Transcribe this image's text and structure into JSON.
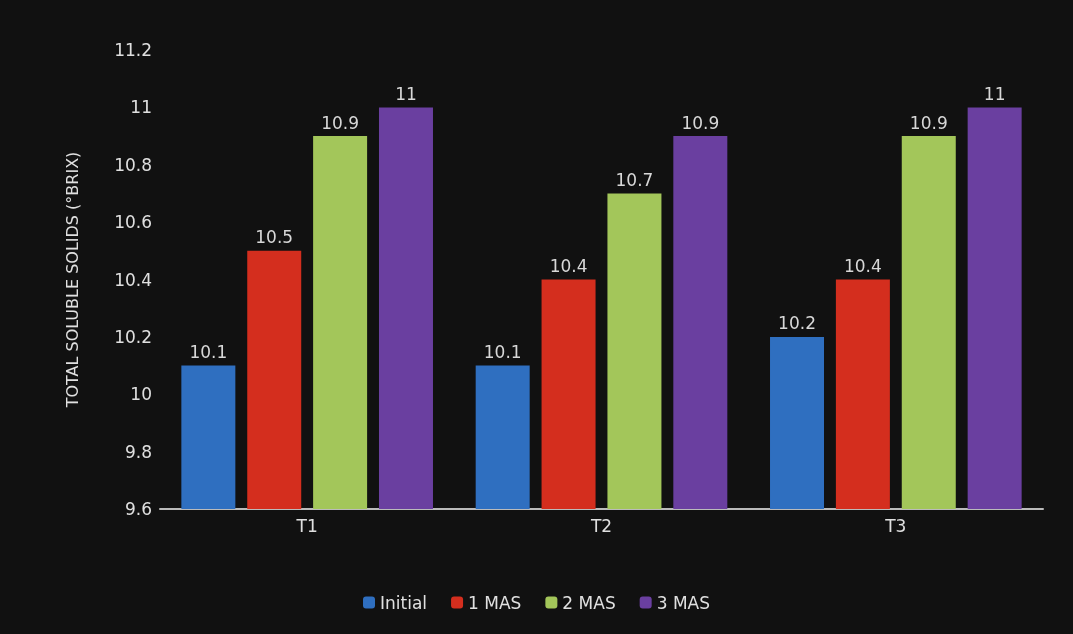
{
  "chart_data": {
    "type": "bar",
    "ylabel": "TOTAL SOLUBLE SOLIDS (°BRIX)",
    "categories": [
      "T1",
      "T2",
      "T3"
    ],
    "series": [
      {
        "name": "Initial",
        "color": "#2f6fc0",
        "values": [
          10.1,
          10.1,
          10.2
        ]
      },
      {
        "name": "1 MAS",
        "color": "#d42e1e",
        "values": [
          10.5,
          10.4,
          10.4
        ]
      },
      {
        "name": "2 MAS",
        "color": "#a3c65a",
        "values": [
          10.9,
          10.7,
          10.9
        ]
      },
      {
        "name": "3 MAS",
        "color": "#6a3fa0",
        "values": [
          11,
          10.9,
          11
        ]
      }
    ],
    "ylim": [
      9.6,
      11.2
    ],
    "yticks": [
      9.6,
      9.8,
      10,
      10.2,
      10.4,
      10.6,
      10.8,
      11,
      11.2
    ],
    "grid": false,
    "legend": "bottom",
    "data_labels": true
  }
}
